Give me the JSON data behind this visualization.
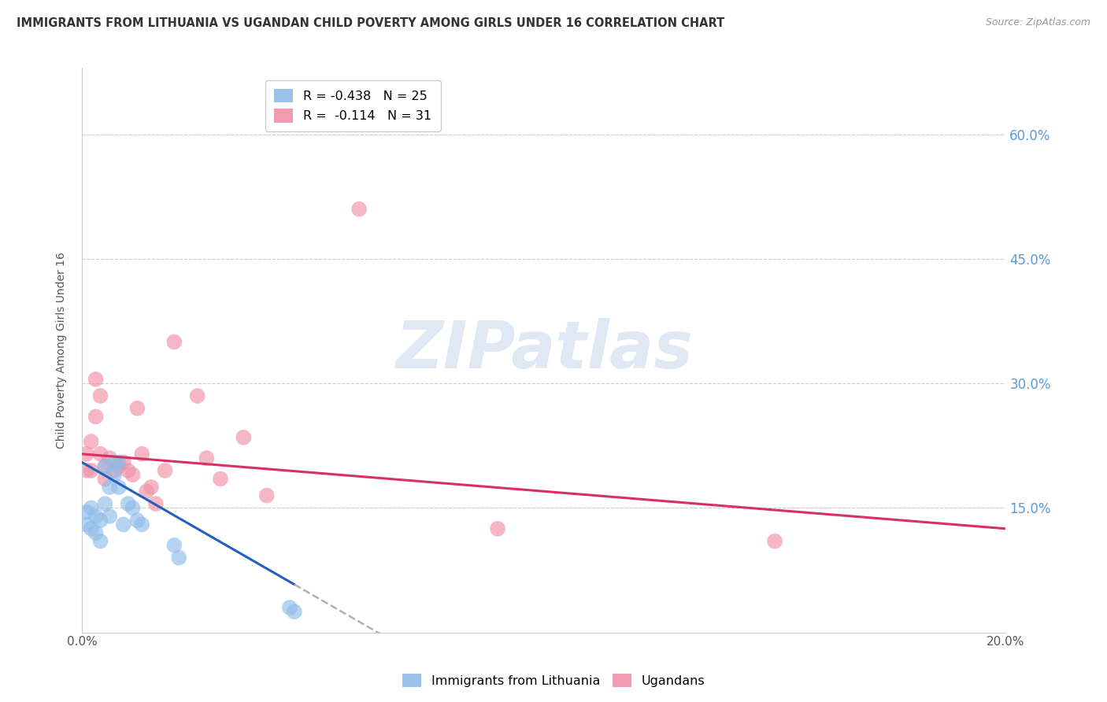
{
  "title": "IMMIGRANTS FROM LITHUANIA VS UGANDAN CHILD POVERTY AMONG GIRLS UNDER 16 CORRELATION CHART",
  "source": "Source: ZipAtlas.com",
  "ylabel": "Child Poverty Among Girls Under 16",
  "xlim": [
    0.0,
    0.2
  ],
  "ylim": [
    0.0,
    0.68
  ],
  "right_yticks": [
    0.15,
    0.3,
    0.45,
    0.6
  ],
  "right_yticklabels": [
    "15.0%",
    "30.0%",
    "45.0%",
    "60.0%"
  ],
  "xticks": [
    0.0,
    0.05,
    0.1,
    0.15,
    0.2
  ],
  "xticklabels": [
    "0.0%",
    "",
    "",
    "",
    "20.0%"
  ],
  "series1_name": "Immigrants from Lithuania",
  "series2_name": "Ugandans",
  "series1_color": "#90bce8",
  "series2_color": "#f090a8",
  "series1_line_color": "#2060c0",
  "series2_line_color": "#d83060",
  "dash_color": "#b0b0b0",
  "watermark": "ZIPatlas",
  "background_color": "#ffffff",
  "grid_color": "#cccccc",
  "blue_x": [
    0.001,
    0.001,
    0.002,
    0.002,
    0.003,
    0.003,
    0.004,
    0.004,
    0.005,
    0.005,
    0.006,
    0.006,
    0.007,
    0.007,
    0.008,
    0.008,
    0.009,
    0.01,
    0.011,
    0.012,
    0.013,
    0.02,
    0.021,
    0.045,
    0.046
  ],
  "blue_y": [
    0.145,
    0.13,
    0.15,
    0.125,
    0.14,
    0.12,
    0.135,
    0.11,
    0.2,
    0.155,
    0.175,
    0.14,
    0.205,
    0.19,
    0.205,
    0.175,
    0.13,
    0.155,
    0.15,
    0.135,
    0.13,
    0.105,
    0.09,
    0.03,
    0.025
  ],
  "pink_x": [
    0.001,
    0.001,
    0.002,
    0.002,
    0.003,
    0.003,
    0.004,
    0.004,
    0.005,
    0.005,
    0.006,
    0.007,
    0.008,
    0.009,
    0.01,
    0.011,
    0.012,
    0.013,
    0.014,
    0.015,
    0.016,
    0.018,
    0.02,
    0.025,
    0.027,
    0.03,
    0.035,
    0.04,
    0.06,
    0.09,
    0.15
  ],
  "pink_y": [
    0.215,
    0.195,
    0.23,
    0.195,
    0.305,
    0.26,
    0.285,
    0.215,
    0.2,
    0.185,
    0.21,
    0.195,
    0.2,
    0.205,
    0.195,
    0.19,
    0.27,
    0.215,
    0.17,
    0.175,
    0.155,
    0.195,
    0.35,
    0.285,
    0.21,
    0.185,
    0.235,
    0.165,
    0.51,
    0.125,
    0.11
  ],
  "blue_trend_x": [
    0.0,
    0.046
  ],
  "blue_trend_slope": -3.2,
  "blue_trend_intercept": 0.205,
  "pink_trend_x": [
    0.0,
    0.2
  ],
  "pink_trend_slope": -0.45,
  "pink_trend_intercept": 0.215
}
